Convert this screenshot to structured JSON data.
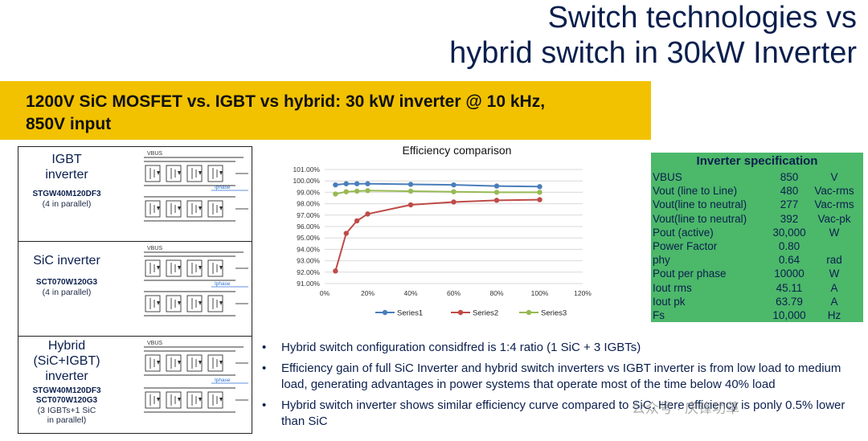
{
  "title": {
    "line1": "Switch technologies vs",
    "line2": "hybrid switch in 30kW Inverter"
  },
  "banner": {
    "line1": "1200V SiC MOSFET vs. IGBT vs hybrid: 30 kW inverter @ 10 kHz,",
    "line2": "850V input"
  },
  "panels": [
    {
      "name1": "IGBT",
      "name2": "inverter",
      "part1": "STGW40M120DF3",
      "part2": "",
      "note1": "(4 in parallel)",
      "note2": "",
      "vbus": "VBUS",
      "iphase": "Iphase"
    },
    {
      "name1": "SiC inverter",
      "name2": "",
      "part1": "SCT070W120G3",
      "part2": "",
      "note1": "(4 in parallel)",
      "note2": "",
      "vbus": "VBUS",
      "iphase": "Iphase"
    },
    {
      "name1": "Hybrid",
      "name2": "(SiC+IGBT)",
      "name3": "inverter",
      "part1": "STGW40M120DF3",
      "part2": "SCT070W120G3",
      "note1": "(3 IGBTs+1 SiC",
      "note2": "in parallel)",
      "vbus": "VBUS",
      "iphase": "Iphase"
    }
  ],
  "chart_data": {
    "type": "line",
    "title": "Efficiency comparison",
    "xlabel": "",
    "ylabel": "",
    "x": [
      5,
      10,
      15,
      20,
      40,
      60,
      80,
      100
    ],
    "x_ticks": [
      "0%",
      "20%",
      "40%",
      "60%",
      "80%",
      "100%",
      "120%"
    ],
    "x_tick_values": [
      0,
      20,
      40,
      60,
      80,
      100,
      120
    ],
    "xlim": [
      0,
      120
    ],
    "y_ticks": [
      "91.00%",
      "92.00%",
      "93.00%",
      "94.00%",
      "95.00%",
      "96.00%",
      "97.00%",
      "98.00%",
      "99.00%",
      "100.00%",
      "101.00%"
    ],
    "y_tick_values": [
      91,
      92,
      93,
      94,
      95,
      96,
      97,
      98,
      99,
      100,
      101
    ],
    "ylim": [
      91,
      101
    ],
    "grid": true,
    "legend": "bottom",
    "series": [
      {
        "name": "Series1",
        "color": "#4a7ebb",
        "values": [
          99.65,
          99.75,
          99.75,
          99.75,
          99.7,
          99.65,
          99.55,
          99.5
        ]
      },
      {
        "name": "Series2",
        "color": "#be4b48",
        "values": [
          92.1,
          95.4,
          96.5,
          97.1,
          97.9,
          98.15,
          98.3,
          98.35
        ]
      },
      {
        "name": "Series3",
        "color": "#98b954",
        "values": [
          98.85,
          99.05,
          99.1,
          99.15,
          99.1,
          99.05,
          99.0,
          99.0
        ]
      }
    ]
  },
  "spec": {
    "title": "Inverter specification",
    "rows": [
      {
        "k": "VBUS",
        "v": "850",
        "u": "V"
      },
      {
        "k": "Vout (line to Line)",
        "v": "480",
        "u": "Vac-rms"
      },
      {
        "k": "Vout(line to neutral)",
        "v": "277",
        "u": "Vac-rms"
      },
      {
        "k": "Vout(line to neutral)",
        "v": "392",
        "u": "Vac-pk"
      },
      {
        "k": "Pout (active)",
        "v": "30,000",
        "u": "W"
      },
      {
        "k": "Power Factor",
        "v": "0.80",
        "u": ""
      },
      {
        "k": "phy",
        "v": "0.64",
        "u": "rad"
      },
      {
        "k": "Pout per phase",
        "v": "10000",
        "u": "W"
      },
      {
        "k": "Iout rms",
        "v": "45.11",
        "u": "A"
      },
      {
        "k": "Iout pk",
        "v": "63.79",
        "u": "A"
      },
      {
        "k": "Fs",
        "v": "10,000",
        "u": "Hz"
      }
    ]
  },
  "bullets": [
    {
      "dot": "•",
      "text": "Hybrid switch configuration considfred is 1:4 ratio (1 SiC + 3 IGBTs)"
    },
    {
      "dot": "•",
      "text": "Efficiency gain of full SiC Inverter and hybrid switch inverters vs IGBT inverter is from low load to medium load, generating advantages in power systems that operate most of the time below 40% load"
    },
    {
      "dot": "•",
      "text": "Hybrid switch inverter shows similar efficiency curve compared to SiC. Here efficiency is ponly 0.5% lower than SiC"
    }
  ],
  "watermark": "公众号 · 庆锋功革"
}
